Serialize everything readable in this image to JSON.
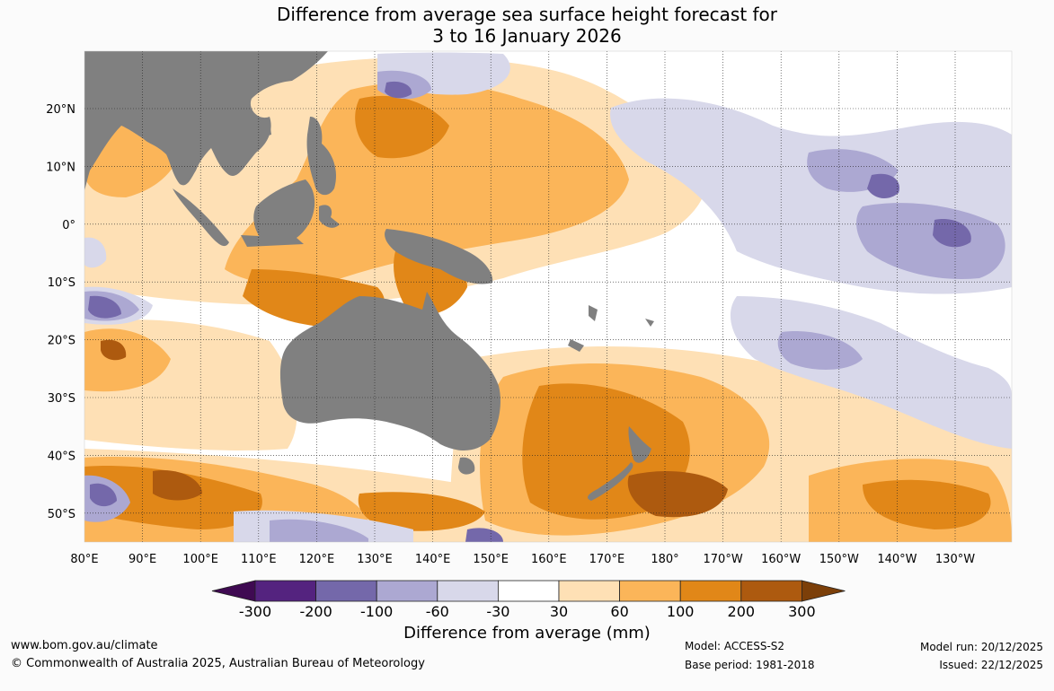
{
  "title": {
    "line1": "Difference from average sea surface height forecast for",
    "line2": "3 to 16 January 2026"
  },
  "map": {
    "lat_labels": [
      "20°N",
      "10°N",
      "0°",
      "10°S",
      "20°S",
      "30°S",
      "40°S",
      "50°S"
    ],
    "lon_labels": [
      "80°E",
      "90°E",
      "100°E",
      "110°E",
      "120°E",
      "130°E",
      "140°E",
      "150°E",
      "160°E",
      "170°E",
      "180°",
      "170°W",
      "160°W",
      "150°W",
      "140°W",
      "130°W"
    ],
    "land_color": "#808080",
    "ocean_color": "#ffffff"
  },
  "colorbar": {
    "labels": [
      "-300",
      "-200",
      "-100",
      "-60",
      "-30",
      "30",
      "60",
      "100",
      "200",
      "300"
    ],
    "colors": [
      "#3f0a52",
      "#54237f",
      "#7468aa",
      "#aca8d2",
      "#d8d8ea",
      "#ffffff",
      "#fee0b5",
      "#fbb559",
      "#e18718",
      "#ad5a0f",
      "#7c3f09"
    ],
    "title": "Difference from average (mm)"
  },
  "footer": {
    "url": "www.bom.gov.au/climate",
    "copyright": "© Commonwealth of Australia 2025, Australian Bureau of Meteorology",
    "model": "Model: ACCESS-S2",
    "base_period": "Base period: 1981-2018",
    "model_run": "Model run: 20/12/2025",
    "issued": "Issued: 22/12/2025"
  }
}
